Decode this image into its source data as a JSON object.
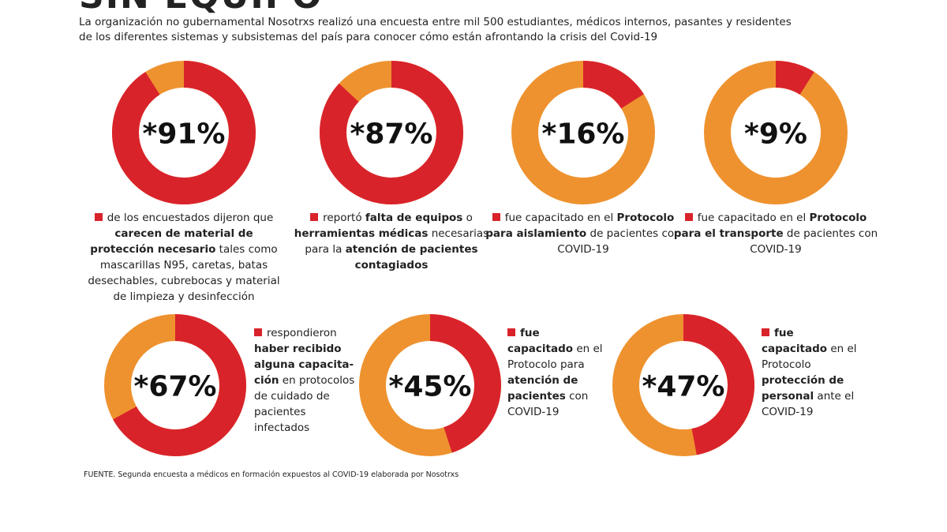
{
  "title": "SIN EQUIPO",
  "intro": "La organización no gubernamental Nosotrxs realizó una encuesta entre mil 500 estudiantes, médicos internos, pasantes y residentes de los diferentes sistemas y subsistemas del país para conocer cómo están afrontando la crisis del Covid-19",
  "source": "FUENTE. Segunda encuesta a médicos en formación expuestos al COVID-19 elaborada por Nosotrxs",
  "chart_data": [
    {
      "type": "donut",
      "values": [
        91
      ],
      "value_labels": [
        "*91%"
      ],
      "color": "#d9232b",
      "track_color": "#ee922f",
      "caption": [
        {
          "text": "de los encuestados dijeron que ",
          "bold": false
        },
        {
          "text": "carecen de  material de protección necesario",
          "bold": true
        },
        {
          "text": " tales como  mascarillas N95, caretas, batas desechables, cubrebocas y material de limpieza y desinfección",
          "bold": false
        }
      ]
    },
    {
      "type": "donut",
      "values": [
        87
      ],
      "value_labels": [
        "*87%"
      ],
      "color": "#d9232b",
      "track_color": "#ee922f",
      "caption": [
        {
          "text": "reportó ",
          "bold": false
        },
        {
          "text": "falta de equipos",
          "bold": true
        },
        {
          "text": " o ",
          "bold": false
        },
        {
          "text": "herramientas médicas",
          "bold": true
        },
        {
          "text": " necesarias para la ",
          "bold": false
        },
        {
          "text": "atención de pacientes contagiados",
          "bold": true
        }
      ]
    },
    {
      "type": "donut",
      "values": [
        16
      ],
      "value_labels": [
        "*16%"
      ],
      "color": "#d9232b",
      "track_color": "#ee922f",
      "caption": [
        {
          "text": "fue capacitado en el ",
          "bold": false
        },
        {
          "text": "Protocolo para aislamiento",
          "bold": true
        },
        {
          "text": " de pacientes con COVID-19",
          "bold": false
        }
      ]
    },
    {
      "type": "donut",
      "values": [
        9
      ],
      "value_labels": [
        "*9%"
      ],
      "color": "#d9232b",
      "track_color": "#ee922f",
      "caption": [
        {
          "text": "fue capacitado en el ",
          "bold": false
        },
        {
          "text": "Protocolo para el transporte",
          "bold": true
        },
        {
          "text": " de pacientes con COVID-19",
          "bold": false
        }
      ]
    },
    {
      "type": "donut",
      "values": [
        67
      ],
      "value_labels": [
        "*67%"
      ],
      "color": "#d9232b",
      "track_color": "#ee922f",
      "caption": [
        {
          "text": "respondieron ",
          "bold": false
        },
        {
          "text": "haber recibido alguna capacita-ción",
          "bold": true
        },
        {
          "text": " en protocolos de cuidado de pacientes infectados",
          "bold": false
        }
      ]
    },
    {
      "type": "donut",
      "values": [
        45
      ],
      "value_labels": [
        "*45%"
      ],
      "color": "#d9232b",
      "track_color": "#ee922f",
      "caption": [
        {
          "text": "fue capacitado",
          "bold": true
        },
        {
          "text": " en el Protocolo para ",
          "bold": false
        },
        {
          "text": "atención de pacientes",
          "bold": true
        },
        {
          "text": " con COVID-19",
          "bold": false
        }
      ]
    },
    {
      "type": "donut",
      "values": [
        47
      ],
      "value_labels": [
        "*47%"
      ],
      "color": "#d9232b",
      "track_color": "#ee922f",
      "caption": [
        {
          "text": "fue capacitado",
          "bold": true
        },
        {
          "text": " en el Protocolo ",
          "bold": false
        },
        {
          "text": "protección de personal",
          "bold": true
        },
        {
          "text": " ante el COVID-19",
          "bold": false
        }
      ]
    }
  ]
}
